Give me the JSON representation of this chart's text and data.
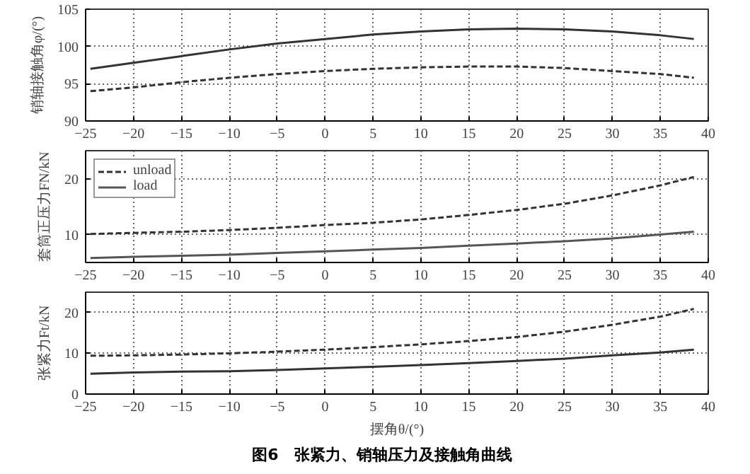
{
  "chart_data": [
    {
      "type": "line",
      "ylabel": "销轴接触角φ/(°)",
      "xlim": [
        -25,
        40
      ],
      "xticks": [
        -25,
        -20,
        -15,
        -10,
        -5,
        0,
        5,
        10,
        15,
        20,
        25,
        30,
        35,
        40
      ],
      "ylim": [
        90,
        105
      ],
      "yticks": [
        90,
        95,
        100,
        105
      ],
      "grid": true,
      "x": [
        -24.5,
        -20,
        -15,
        -10,
        -5,
        0,
        5,
        10,
        15,
        20,
        25,
        30,
        35,
        38.5
      ],
      "series": [
        {
          "color": "#333333",
          "line_style": "dashed",
          "values": [
            94,
            94.5,
            95.2,
            95.8,
            96.3,
            96.7,
            97,
            97.2,
            97.3,
            97.3,
            97.1,
            96.7,
            96.3,
            95.8
          ]
        },
        {
          "color": "#333333",
          "line_style": "solid",
          "values": [
            97,
            97.8,
            98.7,
            99.6,
            100.4,
            101,
            101.6,
            102,
            102.3,
            102.4,
            102.3,
            102,
            101.5,
            101
          ]
        }
      ]
    },
    {
      "type": "line",
      "ylabel": "套筒正压力FN/kN",
      "xlim": [
        -25,
        40
      ],
      "xticks": [
        -25,
        -20,
        -15,
        -10,
        -5,
        0,
        5,
        10,
        15,
        20,
        25,
        30,
        35,
        40
      ],
      "ylim": [
        5,
        25
      ],
      "yticks": [
        10,
        20
      ],
      "grid": true,
      "legend": "top left",
      "x": [
        -24.5,
        -20,
        -15,
        -10,
        -5,
        0,
        5,
        10,
        15,
        20,
        25,
        30,
        35,
        38.5
      ],
      "series": [
        {
          "name": "unload",
          "color": "#333333",
          "line_style": "dashed",
          "values": [
            10.1,
            10.3,
            10.5,
            10.8,
            11.2,
            11.7,
            12.1,
            12.7,
            13.5,
            14.4,
            15.5,
            17,
            18.8,
            20.3
          ]
        },
        {
          "name": "load",
          "color": "#555555",
          "line_style": "solid",
          "values": [
            5.8,
            6.0,
            6.2,
            6.4,
            6.7,
            7.0,
            7.3,
            7.6,
            8.0,
            8.4,
            8.8,
            9.3,
            10,
            10.5
          ]
        }
      ]
    },
    {
      "type": "line",
      "ylabel": "张紧力Ft/kN",
      "xlabel": "摆角θ/(°)",
      "xlim": [
        -25,
        40
      ],
      "xticks": [
        -25,
        -20,
        -15,
        -10,
        -5,
        0,
        5,
        10,
        15,
        20,
        25,
        30,
        35,
        40
      ],
      "ylim": [
        0,
        25
      ],
      "yticks": [
        0,
        10,
        20
      ],
      "grid": true,
      "annotations": [
        "图6　张紧力、销轴压力及接触角曲线"
      ],
      "x": [
        -24.5,
        -20,
        -15,
        -10,
        -5,
        0,
        5,
        10,
        15,
        20,
        25,
        30,
        35,
        38.5
      ],
      "series": [
        {
          "color": "#333333",
          "line_style": "dashed",
          "values": [
            9.4,
            9.5,
            9.7,
            10,
            10.4,
            10.9,
            11.5,
            12.2,
            13,
            14,
            15.3,
            17,
            19,
            20.9
          ]
        },
        {
          "color": "#333333",
          "line_style": "solid",
          "values": [
            5.0,
            5.3,
            5.5,
            5.6,
            5.9,
            6.3,
            6.7,
            7.1,
            7.6,
            8.1,
            8.7,
            9.5,
            10.2,
            10.9
          ]
        }
      ]
    }
  ]
}
